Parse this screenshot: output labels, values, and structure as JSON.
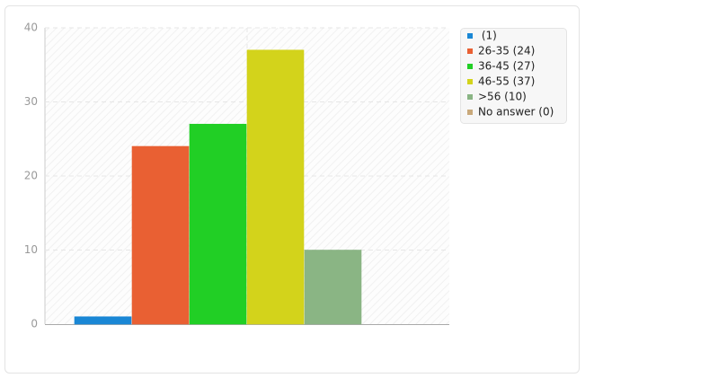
{
  "chart_data": {
    "type": "bar",
    "series": [
      {
        "name": " (1)",
        "color": "#1a87d5",
        "values": [
          1
        ]
      },
      {
        "name": "26-35 (24)",
        "color": "#e96033",
        "values": [
          24
        ]
      },
      {
        "name": "36-45 (27)",
        "color": "#21cf25",
        "values": [
          27
        ]
      },
      {
        "name": "46-55 (37)",
        "color": "#d3d31b",
        "values": [
          37
        ]
      },
      {
        "name": ">56 (10)",
        "color": "#8ab584",
        "values": [
          10
        ]
      },
      {
        "name": "No answer (0)",
        "color": "#c9a97b",
        "values": [
          0
        ]
      }
    ],
    "ylim": [
      0,
      40
    ],
    "yticks": [
      0,
      10,
      20,
      30,
      40
    ],
    "grid": true,
    "legend": "right"
  }
}
